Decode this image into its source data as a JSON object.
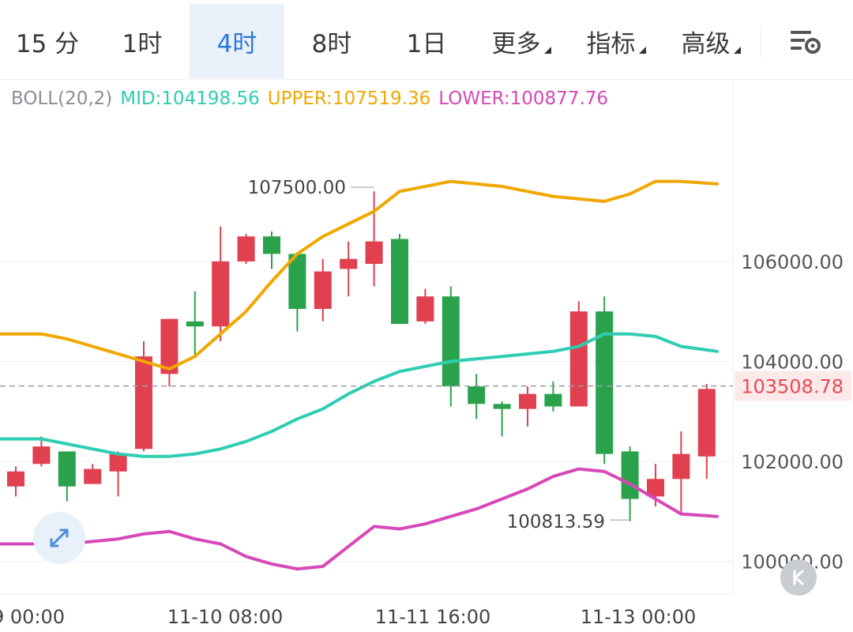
{
  "tabs": [
    {
      "label": "15 分",
      "active": false,
      "dropdown": false
    },
    {
      "label": "1时",
      "active": false,
      "dropdown": false
    },
    {
      "label": "4时",
      "active": true,
      "dropdown": false
    },
    {
      "label": "8时",
      "active": false,
      "dropdown": false
    },
    {
      "label": "1日",
      "active": false,
      "dropdown": false
    },
    {
      "label": "更多",
      "active": false,
      "dropdown": true
    },
    {
      "label": "指标",
      "active": false,
      "dropdown": true
    },
    {
      "label": "高级",
      "active": false,
      "dropdown": true
    }
  ],
  "toolbar": {
    "settings_icon": "chart-settings-icon"
  },
  "indicator": {
    "name": "BOLL(20,2)",
    "mid": "MID:104198.56",
    "upper": "UPPER:107519.36",
    "lower": "LOWER:100877.76"
  },
  "colors": {
    "up": "#e0404f",
    "down": "#2aa24c",
    "mid": "#2fcdb2",
    "upper": "#f0a800",
    "lower": "#d748b8",
    "accent": "#2e7ad7",
    "last_price": "#e94a55"
  },
  "chart_data": {
    "type": "candlestick",
    "indicator": "BOLL(20,2)",
    "ylim": [
      99300,
      108700
    ],
    "y_ticks": [
      "106000.00",
      "104000.00",
      "102000.00",
      "100000.00"
    ],
    "x_ticks": [
      "9 00:00",
      "11-10 08:00",
      "11-11 16:00",
      "11-13 00:00"
    ],
    "last_price": "103508.78",
    "annotations": {
      "high": "107500.00",
      "low": "100813.59"
    },
    "candles": [
      {
        "open": 101500,
        "close": 101800,
        "high": 101900,
        "low": 101300
      },
      {
        "open": 101950,
        "close": 102300,
        "high": 102500,
        "low": 101900
      },
      {
        "open": 102200,
        "close": 101500,
        "high": 102200,
        "low": 101200
      },
      {
        "open": 101550,
        "close": 101850,
        "high": 101950,
        "low": 101550
      },
      {
        "open": 101800,
        "close": 102150,
        "high": 102200,
        "low": 101300
      },
      {
        "open": 102250,
        "close": 104100,
        "high": 104400,
        "low": 102200
      },
      {
        "open": 103750,
        "close": 104850,
        "high": 104850,
        "low": 103500
      },
      {
        "open": 104800,
        "close": 104700,
        "high": 105400,
        "low": 104100
      },
      {
        "open": 104700,
        "close": 106000,
        "high": 106700,
        "low": 104400
      },
      {
        "open": 106000,
        "close": 106500,
        "high": 106550,
        "low": 105950
      },
      {
        "open": 106500,
        "close": 106150,
        "high": 106600,
        "low": 105850
      },
      {
        "open": 106150,
        "close": 105050,
        "high": 106150,
        "low": 104600
      },
      {
        "open": 105050,
        "close": 105800,
        "high": 106050,
        "low": 104800
      },
      {
        "open": 105850,
        "close": 106050,
        "high": 106400,
        "low": 105300
      },
      {
        "open": 105950,
        "close": 106400,
        "high": 107400,
        "low": 105500
      },
      {
        "open": 106450,
        "close": 104750,
        "high": 106550,
        "low": 104750
      },
      {
        "open": 104800,
        "close": 105300,
        "high": 105450,
        "low": 104750
      },
      {
        "open": 105300,
        "close": 103500,
        "high": 105500,
        "low": 103100
      },
      {
        "open": 103500,
        "close": 103150,
        "high": 103750,
        "low": 102850
      },
      {
        "open": 103150,
        "close": 103050,
        "high": 103200,
        "low": 102500
      },
      {
        "open": 103050,
        "close": 103350,
        "high": 103500,
        "low": 102700
      },
      {
        "open": 103350,
        "close": 103100,
        "high": 103600,
        "low": 103000
      },
      {
        "open": 103100,
        "close": 105000,
        "high": 105200,
        "low": 103100
      },
      {
        "open": 105000,
        "close": 102150,
        "high": 105300,
        "low": 101950
      },
      {
        "open": 102200,
        "close": 101250,
        "high": 102300,
        "low": 100800
      },
      {
        "open": 101300,
        "close": 101650,
        "high": 101950,
        "low": 101100
      },
      {
        "open": 101650,
        "close": 102150,
        "high": 102600,
        "low": 100950
      },
      {
        "open": 102100,
        "close": 103450,
        "high": 103550,
        "low": 101650
      }
    ],
    "series": [
      {
        "name": "UPPER",
        "values": [
          104550,
          104550,
          104450,
          104300,
          104150,
          104000,
          103850,
          104100,
          104550,
          105000,
          105600,
          106150,
          106500,
          106750,
          107000,
          107400,
          107500,
          107600,
          107550,
          107500,
          107400,
          107300,
          107250,
          107200,
          107350,
          107600,
          107600,
          107550
        ]
      },
      {
        "open_name": "",
        "name": "MID",
        "values": [
          102450,
          102450,
          102350,
          102250,
          102150,
          102100,
          102100,
          102150,
          102250,
          102400,
          102600,
          102850,
          103050,
          103350,
          103600,
          103800,
          103900,
          104000,
          104050,
          104100,
          104150,
          104200,
          104300,
          104550,
          104550,
          104500,
          104300,
          104200
        ]
      },
      {
        "name": "LOWER",
        "values": [
          100350,
          100350,
          100350,
          100400,
          100450,
          100550,
          100600,
          100450,
          100350,
          100100,
          99950,
          99850,
          99900,
          100300,
          100700,
          100650,
          100750,
          100900,
          101050,
          101250,
          101450,
          101700,
          101850,
          101800,
          101550,
          101250,
          100950,
          100900
        ]
      }
    ]
  }
}
